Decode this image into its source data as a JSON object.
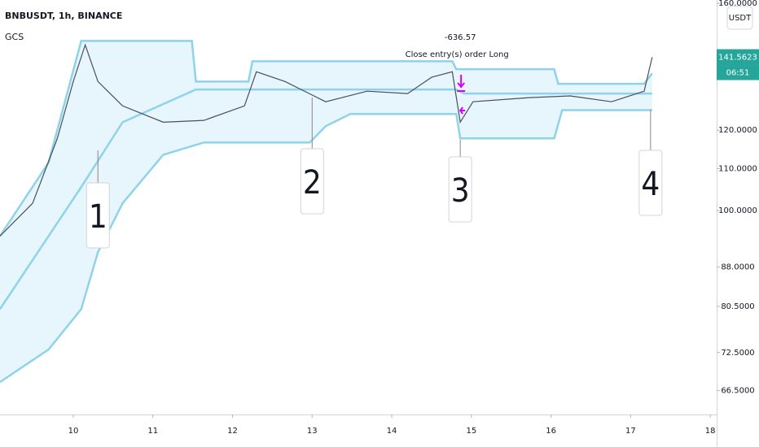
{
  "chart_data": {
    "type": "line",
    "title": "BNBUSDT, 1h, BINANCE",
    "subtitle": "GCS",
    "currency": "USDT",
    "log_scale": true,
    "xlim": [
      9.08,
      18.08
    ],
    "xticks": [
      10,
      11,
      12,
      13,
      14,
      15,
      16,
      17,
      18
    ],
    "ylim": [
      63,
      161.2
    ],
    "yticks": [
      {
        "value": 160,
        "label": "160.0000"
      },
      {
        "value": 120,
        "label": "120.0000"
      },
      {
        "value": 110,
        "label": "110.0000"
      },
      {
        "value": 100,
        "label": "100.0000"
      },
      {
        "value": 88,
        "label": "88.0000"
      },
      {
        "value": 80.5,
        "label": "80.5000"
      },
      {
        "value": 72.5,
        "label": "72.5000"
      },
      {
        "value": 66.5,
        "label": "66.5000"
      }
    ],
    "series": [
      {
        "color": "#8fd3ea",
        "x": [
          9.08,
          9.69,
          10.1,
          11.49,
          11.54,
          12.2,
          12.25,
          14.76,
          14.81,
          16.04,
          16.09,
          17.17,
          17.27
        ],
        "values": [
          94.4,
          111.5,
          146.9,
          146.9,
          134.0,
          134.0,
          140.3,
          140.3,
          137.8,
          137.8,
          133.3,
          133.3,
          136.5
        ]
      },
      {
        "color": "#8fd3ea",
        "x": [
          9.08,
          10.1,
          10.62,
          11.54,
          14.81,
          14.91,
          17.27
        ],
        "values": [
          80.0,
          105.5,
          122.2,
          131.6,
          131.6,
          130.4,
          130.4
        ]
      },
      {
        "color": "#8fd3ea",
        "x": [
          9.08,
          9.69,
          10.1,
          10.31,
          10.62,
          11.13,
          11.64,
          12.97,
          13.17,
          13.48,
          14.81,
          14.86,
          16.04,
          16.14,
          17.27
        ],
        "values": [
          67.8,
          73.0,
          80.0,
          91.0,
          101.7,
          113.5,
          116.7,
          116.7,
          121.1,
          124.5,
          124.5,
          117.8,
          117.8,
          125.6,
          125.6
        ]
      },
      {
        "color": "#4a4f5c",
        "x": [
          9.08,
          9.49,
          9.8,
          10.0,
          10.15,
          10.31,
          10.62,
          11.13,
          11.64,
          12.15,
          12.3,
          12.66,
          13.17,
          13.69,
          14.2,
          14.5,
          14.76,
          14.86,
          15.02,
          15.73,
          16.24,
          16.76,
          17.17,
          17.27
        ],
        "values": [
          94.4,
          101.7,
          117.8,
          134.0,
          145.6,
          134.0,
          126.8,
          122.2,
          122.7,
          126.8,
          137.0,
          134.0,
          128.0,
          131.1,
          130.4,
          135.3,
          137.0,
          122.2,
          128.0,
          129.2,
          129.7,
          128.0,
          131.1,
          141.6
        ]
      }
    ],
    "last_price": {
      "value": 141.5623,
      "label": "141.5623"
    },
    "countdown": "06:51",
    "trade": {
      "x": 14.86,
      "profit": -636.57,
      "text": "Close entry(s) order Long"
    },
    "callouts": [
      {
        "label": "1",
        "x": 10.31
      },
      {
        "label": "2",
        "x": 13.0
      },
      {
        "label": "3",
        "x": 14.86
      },
      {
        "label": "4",
        "x": 17.25
      }
    ]
  }
}
